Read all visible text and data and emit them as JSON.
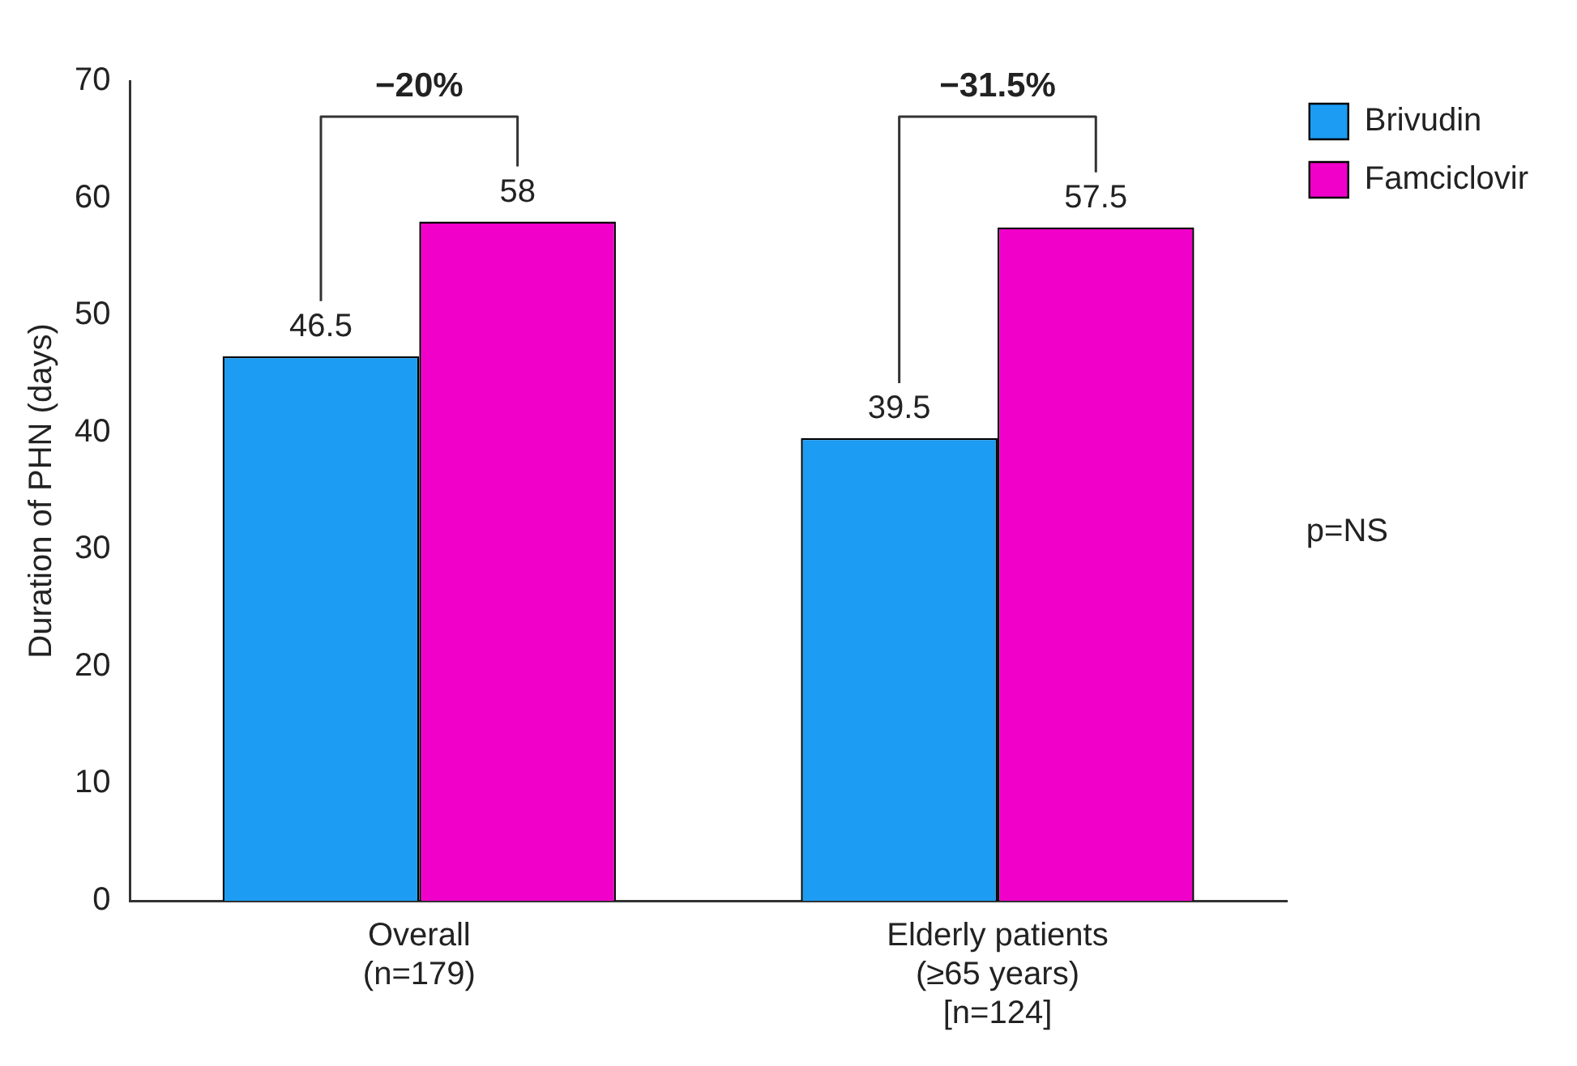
{
  "chart_data": {
    "type": "bar",
    "ylabel": "Duration of PHN (days)",
    "categories": [
      "Overall\n(n=179)",
      "Elderly patients\n(≥65 years)\n[n=124]"
    ],
    "series": [
      {
        "name": "Brivudin",
        "color": "#1c9cf2",
        "values": [
          46.5,
          39.5
        ]
      },
      {
        "name": "Famciclovir",
        "color": "#f000c8",
        "values": [
          58,
          57.5
        ]
      }
    ],
    "ylim": [
      0,
      70
    ],
    "yticks": [
      0,
      10,
      20,
      30,
      40,
      50,
      60,
      70
    ],
    "grid": false,
    "legend": "top right",
    "data_labels": true,
    "annotations": [
      "−20%",
      "−31.5%",
      "p=NS"
    ]
  }
}
